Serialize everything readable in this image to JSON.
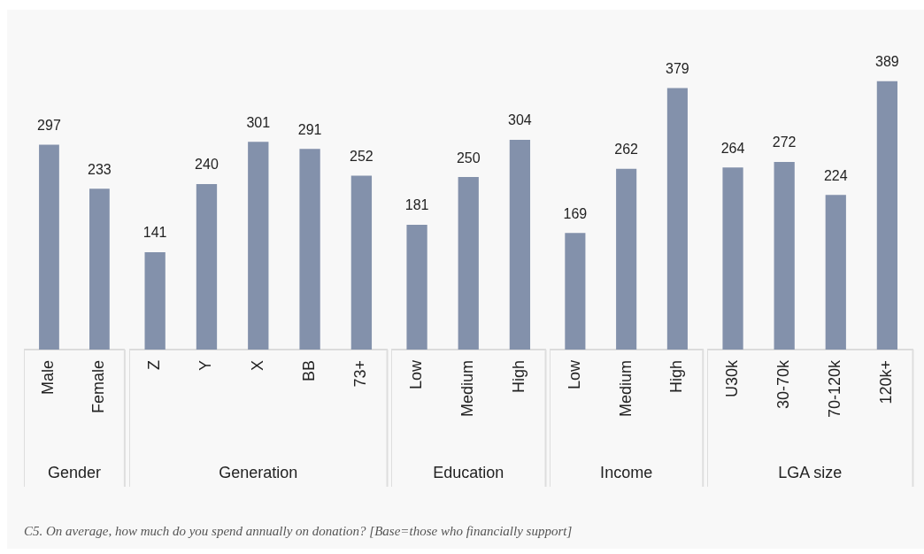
{
  "chart_data": [
    {
      "type": "bar",
      "xlabel": "Gender",
      "categories": [
        "Male",
        "Female"
      ],
      "values": [
        297,
        233
      ],
      "color": "#8391ab",
      "data_labels": true,
      "tick_labels": "x",
      "annotations": [
        "C5. On average, how much do you spend annually on donation? [Base=those who financially support]"
      ]
    },
    {
      "type": "bar",
      "xlabel": "Generation",
      "categories": [
        "Z",
        "Y",
        "X",
        "BB",
        "73+"
      ],
      "values": [
        141,
        240,
        301,
        291,
        252
      ],
      "color": "#8391ab",
      "data_labels": true,
      "tick_labels": "x"
    },
    {
      "type": "bar",
      "xlabel": "Education",
      "categories": [
        "Low",
        "Medium",
        "High"
      ],
      "values": [
        181,
        250,
        304
      ],
      "color": "#8391ab",
      "data_labels": true,
      "tick_labels": "x"
    },
    {
      "type": "bar",
      "xlabel": "Income",
      "categories": [
        "Low",
        "Medium",
        "High"
      ],
      "values": [
        169,
        262,
        379
      ],
      "color": "#8391ab",
      "data_labels": true,
      "tick_labels": "x"
    },
    {
      "type": "bar",
      "xlabel": "LGA size",
      "categories": [
        "U30k",
        "30-70k",
        "70-120k",
        "120k+"
      ],
      "values": [
        264,
        272,
        224,
        389
      ],
      "color": "#8391ab",
      "data_labels": true,
      "tick_labels": "x"
    }
  ]
}
